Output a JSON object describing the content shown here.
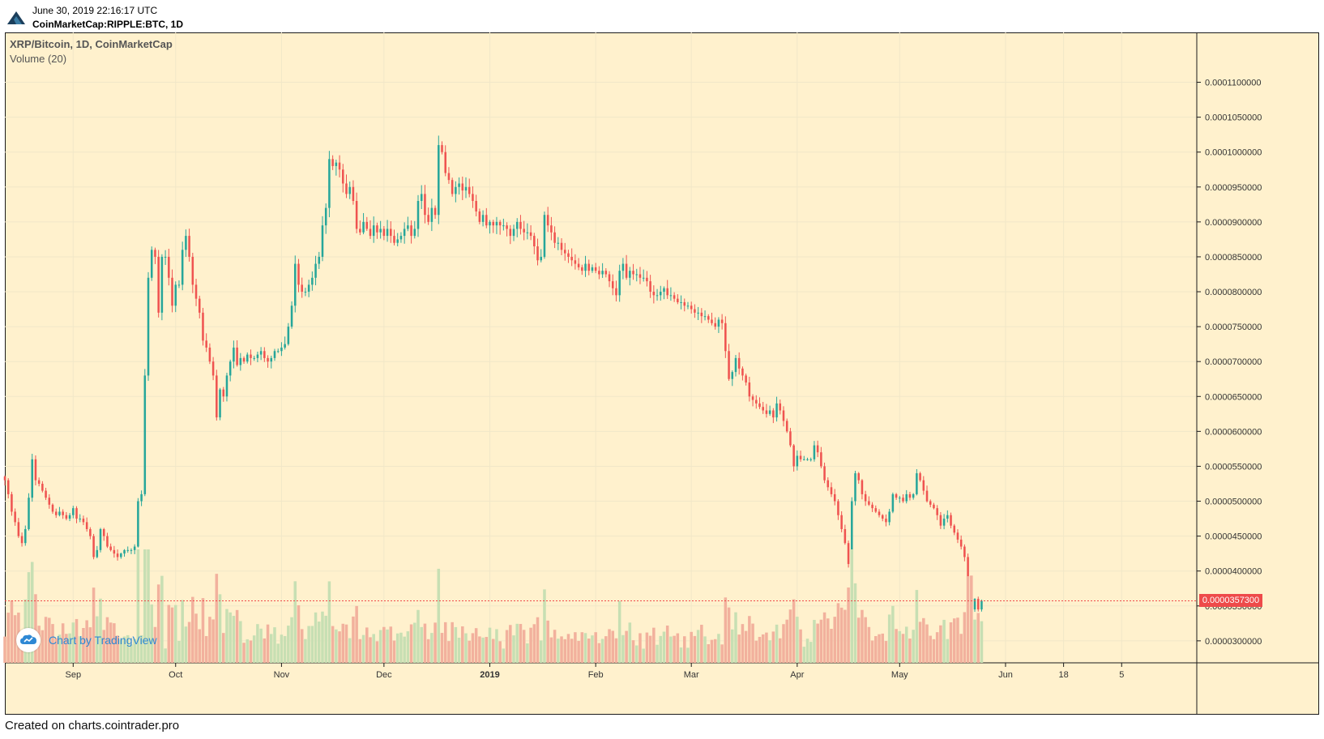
{
  "header": {
    "timestamp": "June 30, 2019 22:16:17 UTC",
    "symbol": "CoinMarketCap:RIPPLE:BTC, 1D",
    "logo_icon": "cointrader-logo-icon"
  },
  "legend": {
    "title": "XRP/Bitcoin, 1D, CoinMarketCap",
    "volume": "Volume (20)"
  },
  "badge": {
    "text": "Chart by TradingView",
    "icon": "tradingview-cloud-icon"
  },
  "footer": {
    "text": "Created on charts.cointrader.pro"
  },
  "last_price": {
    "label": "0.0000357300",
    "value": 3.573e-05,
    "color": "#ee4a4a"
  },
  "colors": {
    "up": "#26a69a",
    "down": "#ef5350",
    "vol_up": "#c7dfb3",
    "vol_down": "#f2b19d",
    "background": "#fff1cd",
    "grid": "#f1e7c8"
  },
  "chart_data": {
    "type": "candlestick",
    "title": "XRP/Bitcoin, 1D, CoinMarketCap",
    "y_tick_labels": [
      "0.0001100000",
      "0.0001050000",
      "0.0001000000",
      "0.0000950000",
      "0.0000900000",
      "0.0000850000",
      "0.0000800000",
      "0.0000750000",
      "0.0000700000",
      "0.0000650000",
      "0.0000600000",
      "0.0000550000",
      "0.0000500000",
      "0.0000450000",
      "0.0000400000",
      "0.0000350000",
      "0.0000300000"
    ],
    "y_ticks": [
      0.00011,
      0.000105,
      0.0001,
      9.5e-05,
      9e-05,
      8.5e-05,
      8e-05,
      7.5e-05,
      7e-05,
      6.5e-05,
      6e-05,
      5.5e-05,
      5e-05,
      4.5e-05,
      4e-05,
      3.5e-05,
      3e-05
    ],
    "ylim": [
      2.685e-05,
      0.00011714
    ],
    "x_tick_labels": [
      {
        "label": "Sep",
        "date": "2018-09-01"
      },
      {
        "label": "Oct",
        "date": "2018-10-01"
      },
      {
        "label": "Nov",
        "date": "2018-11-01"
      },
      {
        "label": "Dec",
        "date": "2018-12-01"
      },
      {
        "label": "2019",
        "date": "2019-01-01",
        "bold": true
      },
      {
        "label": "Feb",
        "date": "2019-02-01"
      },
      {
        "label": "Mar",
        "date": "2019-03-01"
      },
      {
        "label": "Apr",
        "date": "2019-04-01"
      },
      {
        "label": "May",
        "date": "2019-05-01"
      },
      {
        "label": "Jun",
        "date": "2019-06-01"
      },
      {
        "label": "18",
        "date": "2019-06-18"
      },
      {
        "label": "5",
        "date": "2019-07-05"
      }
    ],
    "xlim": [
      "2018-08-12",
      "2019-07-27"
    ],
    "bar_interval_days": 1,
    "series_start_date": "2018-08-12",
    "close": [
      5.3e-05,
      5.1e-05,
      4.85e-05,
      4.7e-05,
      4.5e-05,
      4.4e-05,
      4.6e-05,
      5.05e-05,
      5.6e-05,
      5.3e-05,
      5.25e-05,
      5.15e-05,
      5.05e-05,
      4.95e-05,
      4.85e-05,
      4.8e-05,
      4.85e-05,
      4.8e-05,
      4.75e-05,
      4.8e-05,
      4.9e-05,
      4.75e-05,
      4.75e-05,
      4.7e-05,
      4.6e-05,
      4.5e-05,
      4.2e-05,
      4.3e-05,
      4.6e-05,
      4.5e-05,
      4.35e-05,
      4.3e-05,
      4.25e-05,
      4.2e-05,
      4.25e-05,
      4.3e-05,
      4.3e-05,
      4.3e-05,
      4.35e-05,
      5e-05,
      5.1e-05,
      6.8e-05,
      8.2e-05,
      8.6e-05,
      8.5e-05,
      7.7e-05,
      8.5e-05,
      8.5e-05,
      8.2e-05,
      7.8e-05,
      8.1e-05,
      8.1e-05,
      8.6e-05,
      8.8e-05,
      8.5e-05,
      8.1e-05,
      7.9e-05,
      7.7e-05,
      7.3e-05,
      7.2e-05,
      7e-05,
      6.8e-05,
      6.2e-05,
      6.6e-05,
      6.5e-05,
      6.8e-05,
      7e-05,
      7.2e-05,
      6.95e-05,
      7.05e-05,
      7e-05,
      7.1e-05,
      7.05e-05,
      7.05e-05,
      7.1e-05,
      7.15e-05,
      7.05e-05,
      7e-05,
      7.05e-05,
      7.15e-05,
      7.15e-05,
      7.2e-05,
      7.25e-05,
      7.5e-05,
      7.8e-05,
      8.4e-05,
      8.1e-05,
      8e-05,
      8e-05,
      8.1e-05,
      8.2e-05,
      8.4e-05,
      8.5e-05,
      8.95e-05,
      9.2e-05,
      9.9e-05,
      9.8e-05,
      9.85e-05,
      9.75e-05,
      9.55e-05,
      9.4e-05,
      9.5e-05,
      9.3e-05,
      8.9e-05,
      8.85e-05,
      9e-05,
      8.9e-05,
      8.8e-05,
      8.95e-05,
      8.85e-05,
      8.9e-05,
      8.8e-05,
      8.9e-05,
      8.8e-05,
      8.7e-05,
      8.75e-05,
      8.8e-05,
      8.9e-05,
      8.95e-05,
      8.8e-05,
      8.9e-05,
      9.3e-05,
      9.4e-05,
      9.1e-05,
      9e-05,
      9.2e-05,
      9.1e-05,
      0.000101,
      0.0001,
      9.7e-05,
      9.6e-05,
      9.4e-05,
      9.5e-05,
      9.55e-05,
      9.45e-05,
      9.5e-05,
      9.4e-05,
      9.3e-05,
      9.15e-05,
      9e-05,
      9.1e-05,
      8.95e-05,
      9e-05,
      8.95e-05,
      9e-05,
      8.95e-05,
      8.95e-05,
      8.9e-05,
      8.8e-05,
      8.9e-05,
      9e-05,
      8.9e-05,
      8.85e-05,
      8.85e-05,
      8.8e-05,
      8.65e-05,
      8.45e-05,
      8.5e-05,
      9.1e-05,
      8.95e-05,
      8.85e-05,
      8.7e-05,
      8.7e-05,
      8.6e-05,
      8.55e-05,
      8.5e-05,
      8.45e-05,
      8.4e-05,
      8.35e-05,
      8.3e-05,
      8.4e-05,
      8.3e-05,
      8.35e-05,
      8.3e-05,
      8.25e-05,
      8.3e-05,
      8.25e-05,
      8.15e-05,
      8.05e-05,
      7.95e-05,
      8.3e-05,
      8.4e-05,
      8.2e-05,
      8.3e-05,
      8.25e-05,
      8.25e-05,
      8.2e-05,
      8.2e-05,
      8.15e-05,
      8e-05,
      7.95e-05,
      7.95e-05,
      8e-05,
      8.05e-05,
      7.95e-05,
      7.95e-05,
      7.9e-05,
      7.85e-05,
      7.85e-05,
      7.8e-05,
      7.8e-05,
      7.75e-05,
      7.7e-05,
      7.7e-05,
      7.65e-05,
      7.65e-05,
      7.6e-05,
      7.55e-05,
      7.5e-05,
      7.6e-05,
      7.55e-05,
      7.15e-05,
      6.75e-05,
      6.85e-05,
      7.05e-05,
      6.9e-05,
      6.8e-05,
      6.7e-05,
      6.5e-05,
      6.45e-05,
      6.4e-05,
      6.35e-05,
      6.3e-05,
      6.25e-05,
      6.3e-05,
      6.2e-05,
      6.4e-05,
      6.3e-05,
      6.15e-05,
      6e-05,
      5.8e-05,
      5.5e-05,
      5.65e-05,
      5.6e-05,
      5.6e-05,
      5.6e-05,
      5.6e-05,
      5.8e-05,
      5.7e-05,
      5.5e-05,
      5.3e-05,
      5.2e-05,
      5.1e-05,
      5e-05,
      4.8e-05,
      4.6e-05,
      4.4e-05,
      4.1e-05,
      5e-05,
      5.4e-05,
      5.3e-05,
      5.1e-05,
      5e-05,
      4.95e-05,
      4.9e-05,
      4.85e-05,
      4.8e-05,
      4.75e-05,
      4.7e-05,
      4.85e-05,
      5.1e-05,
      5.05e-05,
      5.05e-05,
      5e-05,
      5.1e-05,
      5.05e-05,
      5.1e-05,
      5.4e-05,
      5.3e-05,
      5.15e-05,
      5e-05,
      4.95e-05,
      4.9e-05,
      4.8e-05,
      4.65e-05,
      4.75e-05,
      4.8e-05,
      4.65e-05,
      4.55e-05,
      4.45e-05,
      4.35e-05,
      4.2e-05,
      3.8e-05,
      3.45e-05,
      3.6e-05,
      3.45e-05,
      3.573e-05
    ],
    "volume_scale_note": "relative",
    "volume_by_month_peak": {
      "2018-09": 1.0,
      "2019-05": 1.0
    }
  }
}
